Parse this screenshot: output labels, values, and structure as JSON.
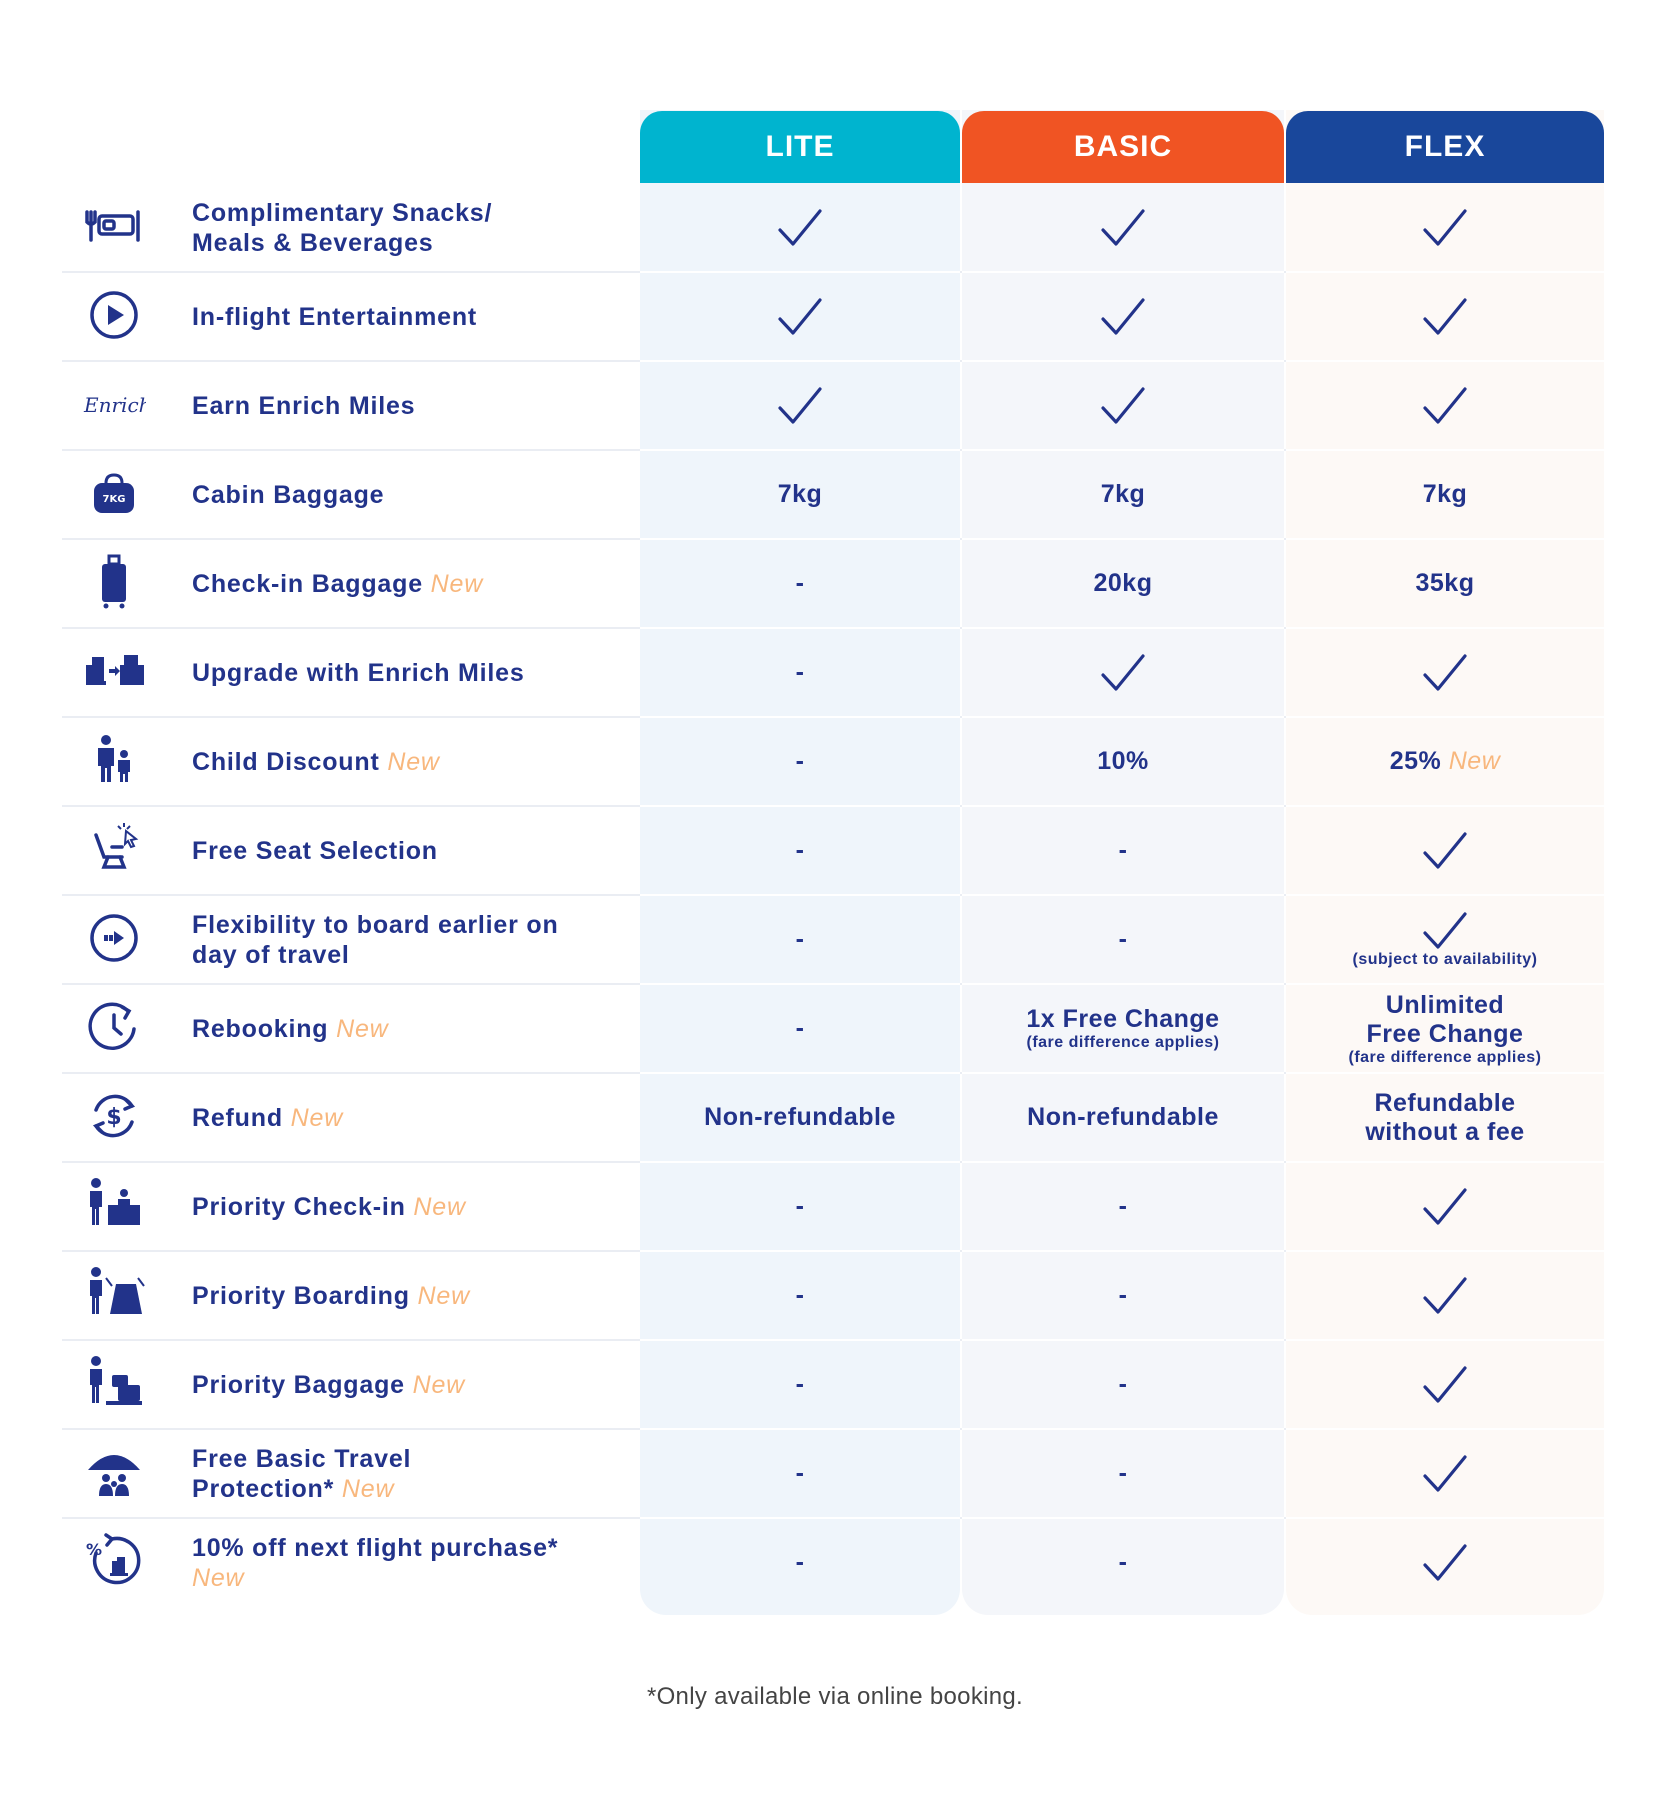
{
  "headers": {
    "lite": "LITE",
    "basic": "BASIC",
    "flex": "FLEX"
  },
  "new_tag": "New",
  "rows": [
    {
      "icon": "meal-icon",
      "f1": "Complimentary Snacks/",
      "f2": "Meals & Beverages",
      "new": false,
      "lite": {
        "check": true
      },
      "basic": {
        "check": true
      },
      "flex": {
        "check": true
      }
    },
    {
      "icon": "play-icon",
      "f1": "In-flight Entertainment",
      "f2": "",
      "new": false,
      "lite": {
        "check": true
      },
      "basic": {
        "check": true
      },
      "flex": {
        "check": true
      }
    },
    {
      "icon": "enrich-logo-icon",
      "f1": "Earn Enrich Miles",
      "f2": "",
      "new": false,
      "lite": {
        "check": true
      },
      "basic": {
        "check": true
      },
      "flex": {
        "check": true
      }
    },
    {
      "icon": "cabin-bag-icon",
      "f1": "Cabin Baggage",
      "f2": "",
      "new": false,
      "lite": {
        "text": "7kg"
      },
      "basic": {
        "text": "7kg"
      },
      "flex": {
        "text": "7kg"
      }
    },
    {
      "icon": "suitcase-icon",
      "f1": "Check-in Baggage",
      "f2": "",
      "new": true,
      "lite": {
        "text": "-"
      },
      "basic": {
        "text": "20kg"
      },
      "flex": {
        "text": "35kg"
      }
    },
    {
      "icon": "seat-upgrade-icon",
      "f1": "Upgrade with Enrich Miles",
      "f2": "",
      "new": false,
      "lite": {
        "text": "-"
      },
      "basic": {
        "check": true
      },
      "flex": {
        "check": true
      }
    },
    {
      "icon": "family-icon",
      "f1": "Child Discount",
      "f2": "",
      "new": true,
      "lite": {
        "text": "-"
      },
      "basic": {
        "text": "10%"
      },
      "flex": {
        "text": "25%",
        "new": true
      }
    },
    {
      "icon": "seat-select-icon",
      "f1": "Free Seat Selection",
      "f2": "",
      "new": false,
      "lite": {
        "text": "-"
      },
      "basic": {
        "text": "-"
      },
      "flex": {
        "check": true
      }
    },
    {
      "icon": "board-earlier-icon",
      "f1": "Flexibility to board earlier on",
      "f2": "day of travel",
      "new": false,
      "lite": {
        "text": "-"
      },
      "basic": {
        "text": "-"
      },
      "flex": {
        "check": true,
        "sub": "(subject to availability)"
      }
    },
    {
      "icon": "clock-icon",
      "f1": "Rebooking",
      "f2": "",
      "new": true,
      "lite": {
        "text": "-"
      },
      "basic": {
        "text": "1x Free Change",
        "sub": "(fare difference applies)"
      },
      "flex": {
        "text": "Unlimited",
        "text2": "Free Change",
        "sub": "(fare difference applies)"
      }
    },
    {
      "icon": "refund-icon",
      "f1": "Refund",
      "f2": "",
      "new": true,
      "lite": {
        "text": "Non-refundable"
      },
      "basic": {
        "text": "Non-refundable"
      },
      "flex": {
        "text": "Refundable",
        "text2": "without a fee"
      }
    },
    {
      "icon": "priority-checkin-icon",
      "f1": "Priority Check-in",
      "f2": "",
      "new": true,
      "lite": {
        "text": "-"
      },
      "basic": {
        "text": "-"
      },
      "flex": {
        "check": true
      }
    },
    {
      "icon": "priority-boarding-icon",
      "f1": "Priority Boarding",
      "f2": "",
      "new": true,
      "lite": {
        "text": "-"
      },
      "basic": {
        "text": "-"
      },
      "flex": {
        "check": true
      }
    },
    {
      "icon": "priority-baggage-icon",
      "f1": "Priority Baggage",
      "f2": "",
      "new": true,
      "lite": {
        "text": "-"
      },
      "basic": {
        "text": "-"
      },
      "flex": {
        "check": true
      }
    },
    {
      "icon": "umbrella-family-icon",
      "f1": "Free Basic Travel",
      "f2": "Protection*",
      "new": true,
      "lite": {
        "text": "-"
      },
      "basic": {
        "text": "-"
      },
      "flex": {
        "check": true
      }
    },
    {
      "icon": "discount-icon",
      "f1": "10% off next flight purchase*",
      "f2": "",
      "new": true,
      "new_on_next_line": true,
      "lite": {
        "text": "-"
      },
      "basic": {
        "text": "-"
      },
      "flex": {
        "check": true
      }
    }
  ],
  "footnote": "*Only available via online booking."
}
